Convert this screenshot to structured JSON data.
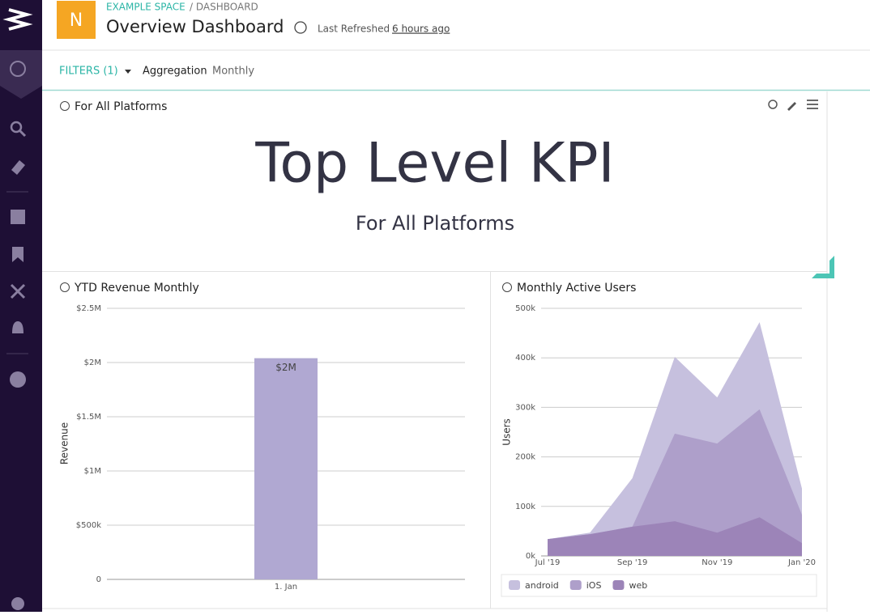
{
  "header": {
    "logo": "N",
    "breadcrumb_space": "EXAMPLE SPACE",
    "breadcrumb_page": "/ DASHBOARD",
    "title": "Overview Dashboard",
    "refreshed_label": "Last Refreshed",
    "refreshed_value": "6 hours ago"
  },
  "filters": {
    "label": "FILTERS (1)",
    "aggregation_label": "Aggregation",
    "aggregation_value": "Monthly"
  },
  "kpi": {
    "panel_title": "For All Platforms",
    "heading": "Top Level KPI",
    "subheading": "For All Platforms"
  },
  "chart_data": [
    {
      "type": "bar",
      "title": "YTD Revenue Monthly",
      "y_label": "Revenue",
      "categories": [
        "1. Jan"
      ],
      "values": [
        2040000
      ],
      "value_labels": [
        "$2M"
      ],
      "color": "#b0a8d2",
      "ylim": [
        0,
        2500000
      ],
      "yticks": [
        0,
        {
          "value": 500000,
          "label": "$500k"
        },
        {
          "value": 1000000,
          "label": "$1M"
        },
        {
          "value": 1500000,
          "label": "$1.5M"
        },
        {
          "value": 2000000,
          "label": "$2M"
        },
        {
          "value": 2500000,
          "label": "$2.5M"
        }
      ],
      "grid": true
    },
    {
      "type": "area",
      "title": "Monthly Active Users",
      "y_label": "Users",
      "categories": [
        "Jul '19",
        null,
        "Sep '19",
        null,
        "Nov '19",
        null,
        "Jan '20"
      ],
      "series": [
        {
          "name": "android",
          "color": "#c6c0de",
          "values": [
            34000,
            47000,
            157000,
            402000,
            320000,
            472000,
            136000
          ]
        },
        {
          "name": "iOS",
          "color": "#ae9fca",
          "values": [
            34000,
            44000,
            59000,
            247000,
            227000,
            296000,
            83000
          ]
        },
        {
          "name": "web",
          "color": "#9c84b8",
          "values": [
            34000,
            44000,
            59000,
            70000,
            47000,
            78000,
            26000
          ]
        }
      ],
      "ylim": [
        0,
        500000
      ],
      "yticks": [
        {
          "value": 0,
          "label": "0k"
        },
        {
          "value": 100000,
          "label": "100k"
        },
        {
          "value": 200000,
          "label": "200k"
        },
        {
          "value": 300000,
          "label": "300k"
        },
        {
          "value": 400000,
          "label": "400k"
        },
        {
          "value": 500000,
          "label": "500k"
        }
      ],
      "grid": true,
      "legend": "bottom"
    }
  ]
}
